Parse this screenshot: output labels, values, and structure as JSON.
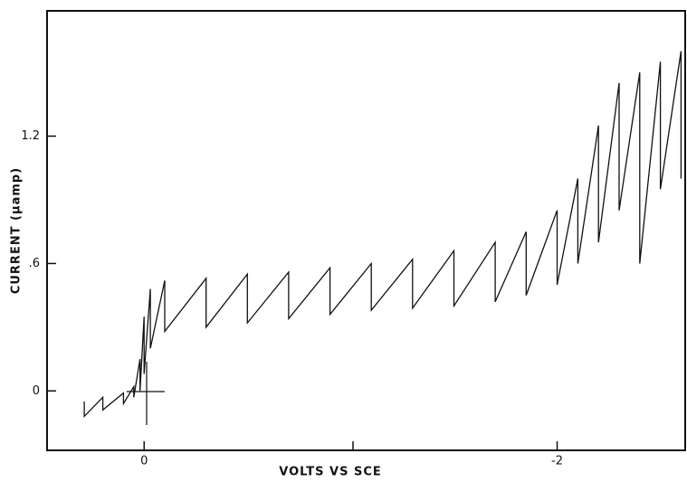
{
  "chart_data": {
    "type": "line",
    "x_label": "VOLTS VS SCE",
    "y_label": "CURRENT (μamp)",
    "xlim": [
      0.47,
      -2.62
    ],
    "xticks": [
      0,
      -2
    ],
    "ylim": [
      -0.28,
      1.79
    ],
    "yticks": [
      0,
      {
        "value": 0.6,
        "label": ".6"
      },
      1.2
    ],
    "series": [
      {
        "color": "#111111",
        "x": [
          0.29,
          0.29,
          0.2,
          0.2,
          0.1,
          0.1,
          0.05,
          0.05,
          0.02,
          0.02,
          0.0,
          0.0,
          -0.03,
          -0.03,
          -0.1,
          -0.1,
          -0.3,
          -0.3,
          -0.5,
          -0.5,
          -0.7,
          -0.7,
          -0.9,
          -0.9,
          -1.1,
          -1.1,
          -1.3,
          -1.3,
          -1.5,
          -1.5,
          -1.7,
          -1.7,
          -1.85,
          -1.85,
          -2.0,
          -2.0,
          -2.1,
          -2.1,
          -2.2,
          -2.2,
          -2.3,
          -2.3,
          -2.4,
          -2.4,
          -2.5,
          -2.5,
          -2.6,
          -2.6
        ],
        "values": [
          -0.05,
          -0.12,
          -0.03,
          -0.09,
          -0.01,
          -0.06,
          0.02,
          -0.03,
          0.15,
          0.0,
          0.35,
          0.08,
          0.48,
          0.2,
          0.52,
          0.28,
          0.53,
          0.3,
          0.55,
          0.32,
          0.56,
          0.34,
          0.58,
          0.36,
          0.6,
          0.38,
          0.62,
          0.39,
          0.66,
          0.4,
          0.7,
          0.42,
          0.75,
          0.45,
          0.85,
          0.5,
          1.0,
          0.6,
          1.25,
          0.7,
          1.45,
          0.85,
          1.5,
          0.6,
          1.55,
          0.95,
          1.6,
          1.0
        ]
      }
    ]
  }
}
